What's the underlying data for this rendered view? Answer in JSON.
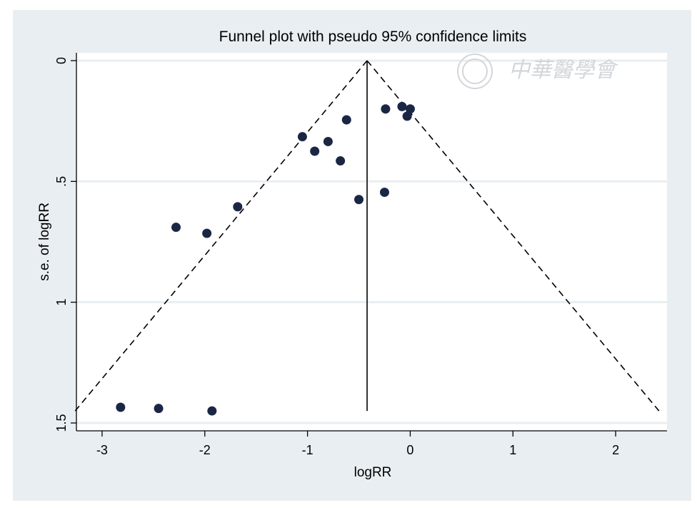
{
  "chart_data": {
    "type": "scatter",
    "title": "Funnel plot with pseudo 95% confidence limits",
    "xlabel": "logRR",
    "ylabel": "s.e. of logRR",
    "xlim": [
      -3.25,
      2.5
    ],
    "ylim": [
      0,
      1.5
    ],
    "y_inverted": true,
    "x_ticks": [
      "-3",
      "-2",
      "-1",
      "0",
      "1",
      "2"
    ],
    "y_ticks": [
      "0",
      ".5",
      "1",
      "1.5"
    ],
    "grid": "horizontal",
    "pooled_logRR": -0.42,
    "ci_se_max": 1.45,
    "points": [
      {
        "x": -0.24,
        "y": 0.2
      },
      {
        "x": -0.08,
        "y": 0.19
      },
      {
        "x": 0.0,
        "y": 0.2
      },
      {
        "x": -0.03,
        "y": 0.23
      },
      {
        "x": -0.62,
        "y": 0.245
      },
      {
        "x": -1.05,
        "y": 0.315
      },
      {
        "x": -0.8,
        "y": 0.335
      },
      {
        "x": -0.93,
        "y": 0.375
      },
      {
        "x": -0.68,
        "y": 0.415
      },
      {
        "x": -0.25,
        "y": 0.545
      },
      {
        "x": -0.5,
        "y": 0.575
      },
      {
        "x": -1.68,
        "y": 0.605
      },
      {
        "x": -2.28,
        "y": 0.69
      },
      {
        "x": -1.98,
        "y": 0.715
      },
      {
        "x": -2.82,
        "y": 1.435
      },
      {
        "x": -2.45,
        "y": 1.44
      },
      {
        "x": -1.93,
        "y": 1.45
      }
    ]
  },
  "watermark": {
    "text": "中華醫學會"
  }
}
